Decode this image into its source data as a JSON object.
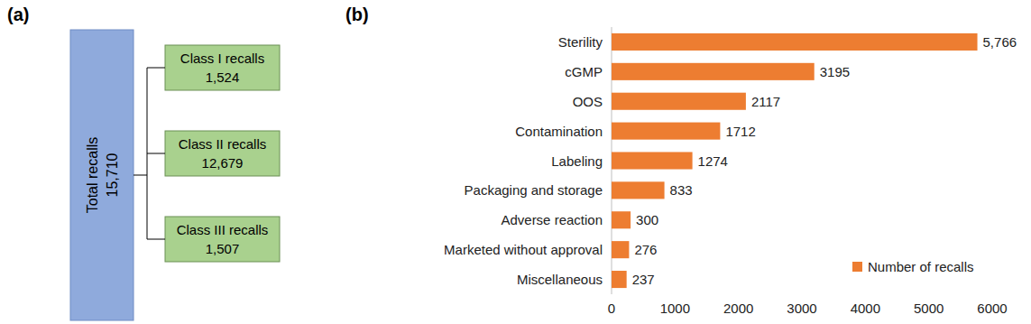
{
  "panel_labels": [
    "(a)",
    "(b)"
  ],
  "diagram": {
    "root": {
      "label": "Total recalls",
      "count": "15,710"
    },
    "children": [
      {
        "label": "Class I recalls",
        "count": "1,524"
      },
      {
        "label": "Class II recalls",
        "count": "12,679"
      },
      {
        "label": "Class III recalls",
        "count": "1,507"
      }
    ]
  },
  "chart_data": {
    "type": "bar",
    "orientation": "horizontal",
    "categories": [
      "Sterility",
      "cGMP",
      "OOS",
      "Contamination",
      "Labeling",
      "Packaging and storage",
      "Adverse reaction",
      "Marketed without approval",
      "Miscellaneous"
    ],
    "series": [
      {
        "name": "Number of recalls",
        "color": "#ed7d31",
        "values": [
          5766,
          3195,
          2117,
          1712,
          1274,
          833,
          300,
          276,
          237
        ],
        "value_labels": [
          "5,766",
          "3195",
          "2117",
          "1712",
          "1274",
          "833",
          "300",
          "276",
          "237"
        ]
      }
    ],
    "xlim": [
      0,
      6000
    ],
    "xticks": [
      0,
      1000,
      2000,
      3000,
      4000,
      5000,
      6000
    ],
    "grid": false,
    "legend": "lower right",
    "data_labels": true
  }
}
